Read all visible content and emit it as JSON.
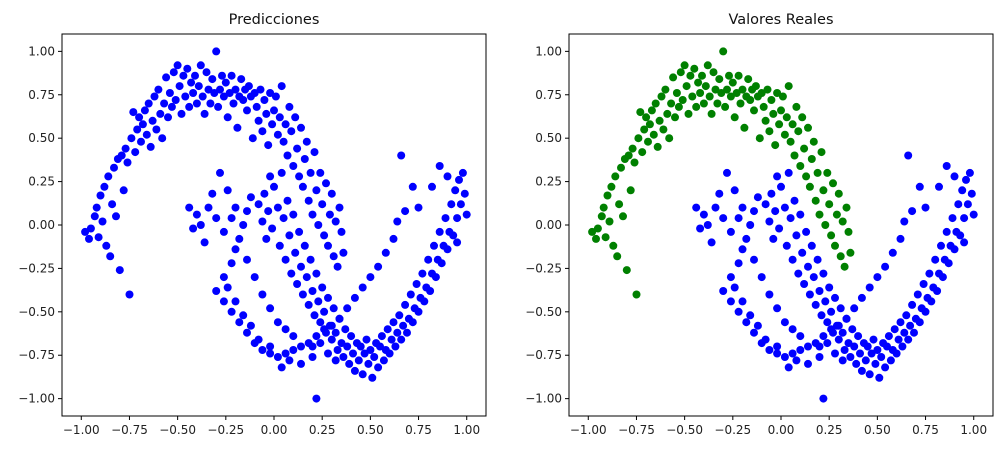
{
  "chart_data": [
    {
      "type": "scatter",
      "title": "Predicciones",
      "xlim": [
        -1.1,
        1.1
      ],
      "ylim": [
        -1.1,
        1.1
      ],
      "xticks": [
        "−1.00",
        "−0.75",
        "−0.50",
        "−0.25",
        "0.00",
        "0.25",
        "0.50",
        "0.75",
        "1.00"
      ],
      "yticks": [
        "−1.00",
        "−0.75",
        "−0.50",
        "−0.25",
        "0.00",
        "0.25",
        "0.50",
        "0.75",
        "1.00"
      ],
      "grid": false,
      "series": [
        {
          "color": "#0000ff",
          "points_from": "all_points"
        }
      ]
    },
    {
      "type": "scatter",
      "title": "Valores Reales",
      "xlim": [
        -1.1,
        1.1
      ],
      "ylim": [
        -1.1,
        1.1
      ],
      "xticks": [
        "−1.00",
        "−0.75",
        "−0.50",
        "−0.25",
        "0.00",
        "0.25",
        "0.50",
        "0.75",
        "1.00"
      ],
      "yticks": [
        "−1.00",
        "−0.75",
        "−0.50",
        "−0.25",
        "0.00",
        "0.25",
        "0.50",
        "0.75",
        "1.00"
      ],
      "grid": false,
      "series": [
        {
          "color": "#008000",
          "points_from": "upper_moon"
        },
        {
          "color": "#0000ff",
          "points_from": "lower_moon"
        }
      ]
    }
  ],
  "points": {
    "upper_moon": [
      [
        -0.98,
        -0.04
      ],
      [
        -0.96,
        -0.08
      ],
      [
        -0.95,
        -0.02
      ],
      [
        -0.93,
        0.05
      ],
      [
        -0.92,
        0.1
      ],
      [
        -0.91,
        -0.07
      ],
      [
        -0.9,
        0.17
      ],
      [
        -0.89,
        0.02
      ],
      [
        -0.88,
        0.22
      ],
      [
        -0.87,
        -0.12
      ],
      [
        -0.86,
        0.28
      ],
      [
        -0.85,
        -0.18
      ],
      [
        -0.84,
        0.12
      ],
      [
        -0.83,
        0.33
      ],
      [
        -0.82,
        0.05
      ],
      [
        -0.81,
        0.38
      ],
      [
        -0.8,
        -0.26
      ],
      [
        -0.79,
        0.4
      ],
      [
        -0.78,
        0.2
      ],
      [
        -0.77,
        0.44
      ],
      [
        -0.76,
        0.36
      ],
      [
        -0.75,
        -0.4
      ],
      [
        -0.74,
        0.5
      ],
      [
        -0.73,
        0.65
      ],
      [
        -0.72,
        0.42
      ],
      [
        -0.71,
        0.55
      ],
      [
        -0.7,
        0.62
      ],
      [
        -0.69,
        0.48
      ],
      [
        -0.68,
        0.58
      ],
      [
        -0.67,
        0.66
      ],
      [
        -0.66,
        0.52
      ],
      [
        -0.65,
        0.7
      ],
      [
        -0.64,
        0.45
      ],
      [
        -0.63,
        0.6
      ],
      [
        -0.62,
        0.74
      ],
      [
        -0.61,
        0.55
      ],
      [
        -0.6,
        0.78
      ],
      [
        -0.59,
        0.64
      ],
      [
        -0.58,
        0.5
      ],
      [
        -0.57,
        0.7
      ],
      [
        -0.56,
        0.85
      ],
      [
        -0.55,
        0.62
      ],
      [
        -0.54,
        0.76
      ],
      [
        -0.53,
        0.68
      ],
      [
        -0.52,
        0.88
      ],
      [
        -0.51,
        0.72
      ],
      [
        -0.5,
        0.92
      ],
      [
        -0.49,
        0.8
      ],
      [
        -0.48,
        0.64
      ],
      [
        -0.47,
        0.86
      ],
      [
        -0.46,
        0.74
      ],
      [
        -0.45,
        0.9
      ],
      [
        -0.44,
        0.68
      ],
      [
        -0.43,
        0.82
      ],
      [
        -0.42,
        0.76
      ],
      [
        -0.41,
        0.86
      ],
      [
        -0.4,
        0.7
      ],
      [
        -0.39,
        0.8
      ],
      [
        -0.38,
        0.92
      ],
      [
        -0.37,
        0.74
      ],
      [
        -0.36,
        0.64
      ],
      [
        -0.35,
        0.88
      ],
      [
        -0.34,
        0.78
      ],
      [
        -0.33,
        0.7
      ],
      [
        -0.32,
        0.84
      ],
      [
        -0.31,
        0.76
      ],
      [
        -0.3,
        1.0
      ],
      [
        -0.29,
        0.68
      ],
      [
        -0.28,
        0.78
      ],
      [
        -0.27,
        0.86
      ],
      [
        -0.26,
        0.74
      ],
      [
        -0.25,
        0.82
      ],
      [
        -0.24,
        0.62
      ],
      [
        -0.23,
        0.76
      ],
      [
        -0.22,
        0.86
      ],
      [
        -0.21,
        0.7
      ],
      [
        -0.2,
        0.78
      ],
      [
        -0.19,
        0.56
      ],
      [
        -0.18,
        0.74
      ],
      [
        -0.17,
        0.84
      ],
      [
        -0.16,
        0.72
      ],
      [
        -0.15,
        0.78
      ],
      [
        -0.14,
        0.66
      ],
      [
        -0.13,
        0.8
      ],
      [
        -0.12,
        0.74
      ],
      [
        -0.11,
        0.5
      ],
      [
        -0.1,
        0.76
      ],
      [
        -0.09,
        0.68
      ],
      [
        -0.08,
        0.6
      ],
      [
        -0.07,
        0.78
      ],
      [
        -0.06,
        0.54
      ],
      [
        -0.05,
        0.72
      ],
      [
        -0.04,
        0.64
      ],
      [
        -0.03,
        0.46
      ],
      [
        -0.02,
        0.76
      ],
      [
        -0.01,
        0.58
      ],
      [
        0.0,
        0.66
      ],
      [
        0.01,
        0.74
      ],
      [
        0.02,
        0.52
      ],
      [
        0.03,
        0.62
      ],
      [
        0.04,
        0.8
      ],
      [
        0.05,
        0.48
      ],
      [
        0.06,
        0.58
      ],
      [
        0.07,
        0.4
      ],
      [
        0.08,
        0.68
      ],
      [
        0.09,
        0.54
      ],
      [
        0.1,
        0.34
      ],
      [
        0.11,
        0.62
      ],
      [
        0.12,
        0.44
      ],
      [
        0.13,
        0.28
      ],
      [
        0.14,
        0.56
      ],
      [
        0.15,
        0.22
      ],
      [
        0.16,
        0.38
      ],
      [
        0.17,
        0.48
      ],
      [
        0.18,
        0.14
      ],
      [
        0.19,
        0.3
      ],
      [
        0.2,
        0.06
      ],
      [
        0.21,
        0.42
      ],
      [
        0.22,
        0.2
      ],
      [
        0.23,
        0.0
      ],
      [
        0.24,
        0.3
      ],
      [
        0.25,
        0.12
      ],
      [
        0.26,
        -0.06
      ],
      [
        0.27,
        0.24
      ],
      [
        0.28,
        -0.12
      ],
      [
        0.29,
        0.06
      ],
      [
        0.3,
        0.18
      ],
      [
        0.31,
        -0.18
      ],
      [
        0.32,
        0.02
      ],
      [
        0.33,
        -0.24
      ],
      [
        0.34,
        0.1
      ],
      [
        0.35,
        -0.04
      ],
      [
        0.36,
        -0.16
      ]
    ],
    "lower_moon": [
      [
        -0.08,
        0.12
      ],
      [
        -0.06,
        0.02
      ],
      [
        -0.05,
        0.18
      ],
      [
        -0.04,
        -0.08
      ],
      [
        -0.03,
        0.08
      ],
      [
        -0.02,
        0.28
      ],
      [
        -0.01,
        -0.02
      ],
      [
        0.0,
        0.22
      ],
      [
        0.02,
        0.1
      ],
      [
        0.03,
        -0.12
      ],
      [
        0.04,
        0.3
      ],
      [
        0.05,
        0.04
      ],
      [
        0.06,
        -0.2
      ],
      [
        0.07,
        0.14
      ],
      [
        0.08,
        -0.06
      ],
      [
        0.09,
        -0.28
      ],
      [
        0.1,
        0.06
      ],
      [
        0.11,
        -0.16
      ],
      [
        0.12,
        -0.34
      ],
      [
        0.13,
        -0.04
      ],
      [
        0.14,
        -0.24
      ],
      [
        0.15,
        -0.4
      ],
      [
        0.16,
        -0.12
      ],
      [
        0.17,
        -0.3
      ],
      [
        0.18,
        -0.46
      ],
      [
        0.19,
        -0.2
      ],
      [
        0.2,
        -0.38
      ],
      [
        0.21,
        -0.52
      ],
      [
        0.22,
        -0.28
      ],
      [
        0.23,
        -0.44
      ],
      [
        0.24,
        -0.56
      ],
      [
        0.25,
        -0.36
      ],
      [
        0.26,
        -0.5
      ],
      [
        0.27,
        -0.62
      ],
      [
        0.28,
        -0.42
      ],
      [
        0.29,
        -0.58
      ],
      [
        0.3,
        -0.66
      ],
      [
        0.31,
        -0.48
      ],
      [
        0.32,
        -0.62
      ],
      [
        0.33,
        -0.72
      ],
      [
        0.34,
        -0.54
      ],
      [
        0.35,
        -0.68
      ],
      [
        0.36,
        -0.76
      ],
      [
        0.37,
        -0.6
      ],
      [
        0.38,
        -0.7
      ],
      [
        0.39,
        -0.8
      ],
      [
        0.4,
        -0.64
      ],
      [
        0.41,
        -0.74
      ],
      [
        0.42,
        -0.84
      ],
      [
        0.43,
        -0.68
      ],
      [
        0.44,
        -0.78
      ],
      [
        0.45,
        -0.7
      ],
      [
        0.46,
        -0.86
      ],
      [
        0.47,
        -0.74
      ],
      [
        0.48,
        -0.66
      ],
      [
        0.49,
        -0.8
      ],
      [
        0.5,
        -0.72
      ],
      [
        0.51,
        -0.88
      ],
      [
        0.52,
        -0.76
      ],
      [
        0.53,
        -0.68
      ],
      [
        0.54,
        -0.82
      ],
      [
        0.55,
        -0.7
      ],
      [
        0.56,
        -0.64
      ],
      [
        0.57,
        -0.78
      ],
      [
        0.58,
        -0.72
      ],
      [
        0.59,
        -0.6
      ],
      [
        0.6,
        -0.74
      ],
      [
        0.61,
        -0.66
      ],
      [
        0.62,
        -0.56
      ],
      [
        0.63,
        -0.7
      ],
      [
        0.64,
        -0.62
      ],
      [
        0.65,
        -0.52
      ],
      [
        0.66,
        -0.66
      ],
      [
        0.67,
        -0.58
      ],
      [
        0.68,
        -0.46
      ],
      [
        0.69,
        -0.62
      ],
      [
        0.7,
        -0.54
      ],
      [
        0.71,
        -0.4
      ],
      [
        0.72,
        -0.56
      ],
      [
        0.73,
        -0.48
      ],
      [
        0.74,
        -0.34
      ],
      [
        0.75,
        -0.5
      ],
      [
        0.76,
        -0.42
      ],
      [
        0.77,
        -0.28
      ],
      [
        0.78,
        -0.44
      ],
      [
        0.79,
        -0.36
      ],
      [
        0.8,
        -0.2
      ],
      [
        0.81,
        -0.38
      ],
      [
        0.82,
        -0.28
      ],
      [
        0.83,
        -0.12
      ],
      [
        0.84,
        -0.3
      ],
      [
        0.85,
        -0.2
      ],
      [
        0.86,
        -0.04
      ],
      [
        0.87,
        -0.22
      ],
      [
        0.88,
        -0.12
      ],
      [
        0.89,
        0.04
      ],
      [
        0.9,
        -0.14
      ],
      [
        0.91,
        -0.04
      ],
      [
        0.92,
        0.12
      ],
      [
        0.93,
        -0.06
      ],
      [
        0.94,
        0.2
      ],
      [
        0.95,
        0.04
      ],
      [
        0.96,
        0.26
      ],
      [
        0.97,
        0.12
      ],
      [
        0.98,
        0.3
      ],
      [
        1.0,
        0.06
      ],
      [
        0.99,
        0.18
      ],
      [
        0.95,
        -0.1
      ],
      [
        0.9,
        0.28
      ],
      [
        0.86,
        0.34
      ],
      [
        0.82,
        0.22
      ],
      [
        0.75,
        0.1
      ],
      [
        0.72,
        0.22
      ],
      [
        0.68,
        0.08
      ],
      [
        0.66,
        0.4
      ],
      [
        0.64,
        0.02
      ],
      [
        0.62,
        -0.08
      ],
      [
        0.58,
        -0.16
      ],
      [
        0.54,
        -0.24
      ],
      [
        0.5,
        -0.3
      ],
      [
        0.46,
        -0.36
      ],
      [
        0.42,
        -0.42
      ],
      [
        0.38,
        -0.48
      ],
      [
        0.34,
        -0.54
      ],
      [
        0.3,
        -0.58
      ],
      [
        0.26,
        -0.6
      ],
      [
        0.22,
        -0.64
      ],
      [
        0.18,
        -0.68
      ],
      [
        0.14,
        -0.7
      ],
      [
        0.1,
        -0.72
      ],
      [
        0.06,
        -0.74
      ],
      [
        0.02,
        -0.76
      ],
      [
        -0.02,
        -0.74
      ],
      [
        -0.06,
        -0.72
      ],
      [
        -0.1,
        -0.68
      ],
      [
        -0.14,
        -0.62
      ],
      [
        -0.18,
        -0.56
      ],
      [
        -0.22,
        -0.5
      ],
      [
        -0.26,
        -0.44
      ],
      [
        -0.3,
        -0.38
      ],
      [
        -0.26,
        -0.3
      ],
      [
        -0.22,
        -0.22
      ],
      [
        -0.2,
        -0.14
      ],
      [
        -0.18,
        -0.08
      ],
      [
        -0.16,
        0.0
      ],
      [
        -0.14,
        0.08
      ],
      [
        -0.12,
        0.16
      ],
      [
        -0.2,
        0.1
      ],
      [
        -0.24,
        0.2
      ],
      [
        -0.28,
        0.3
      ],
      [
        -0.32,
        0.18
      ],
      [
        -0.26,
        -0.04
      ],
      [
        -0.3,
        0.04
      ],
      [
        -0.34,
        0.1
      ],
      [
        -0.36,
        -0.1
      ],
      [
        -0.38,
        0.0
      ],
      [
        -0.4,
        0.06
      ],
      [
        -0.42,
        -0.02
      ],
      [
        -0.44,
        0.1
      ],
      [
        -0.22,
        0.04
      ],
      [
        -0.14,
        -0.2
      ],
      [
        -0.1,
        -0.3
      ],
      [
        -0.06,
        -0.4
      ],
      [
        -0.02,
        -0.48
      ],
      [
        0.02,
        -0.56
      ],
      [
        0.06,
        -0.6
      ],
      [
        0.1,
        -0.64
      ],
      [
        0.2,
        -0.7
      ],
      [
        0.24,
        -0.68
      ],
      [
        0.28,
        -0.74
      ],
      [
        0.32,
        -0.78
      ],
      [
        0.22,
        -1.0
      ],
      [
        0.2,
        -0.76
      ],
      [
        0.14,
        -0.8
      ],
      [
        0.08,
        -0.78
      ],
      [
        0.04,
        -0.82
      ],
      [
        -0.02,
        -0.7
      ],
      [
        -0.08,
        -0.66
      ],
      [
        -0.12,
        -0.58
      ],
      [
        -0.16,
        -0.52
      ],
      [
        -0.2,
        -0.44
      ],
      [
        -0.24,
        -0.36
      ]
    ]
  }
}
